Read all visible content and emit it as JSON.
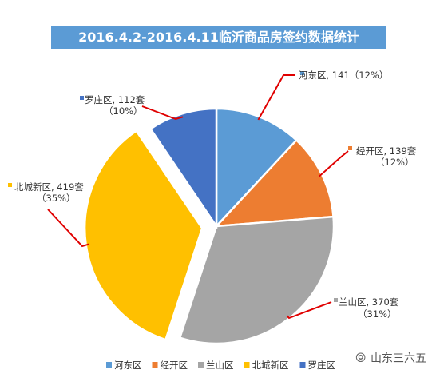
{
  "chart_data": {
    "type": "pie",
    "title": "2016.4.2-2016.4.11临沂商品房签约数据统计",
    "unit": "套",
    "slices": [
      {
        "name": "河东区",
        "value": 141,
        "percent": "12%",
        "label": "河东区, 141（12%）",
        "color": "#5b9bd5"
      },
      {
        "name": "经开区",
        "value": 139,
        "percent": "12%",
        "label_line1": "经开区, 139套",
        "label_line2": "（12%）",
        "color": "#ed7d31"
      },
      {
        "name": "兰山区",
        "value": 370,
        "percent": "31%",
        "label_line1": "兰山区, 370套",
        "label_line2": "（31%）",
        "color": "#a5a5a5"
      },
      {
        "name": "北城新区",
        "value": 419,
        "percent": "35%",
        "label_line1": "北城新区, 419套",
        "label_line2": "（35%）",
        "color": "#ffc000",
        "exploded": true
      },
      {
        "name": "罗庄区",
        "value": 112,
        "percent": "10%",
        "label_line1": "罗庄区, 112套",
        "label_line2": "（10%）",
        "color": "#4472c4"
      }
    ],
    "legend": {
      "placement": "bottom",
      "items": [
        "河东区",
        "经开区",
        "兰山区",
        "北城新区",
        "罗庄区"
      ]
    },
    "leader_line_color": "#e00000"
  },
  "watermark": {
    "icon": "wechat-icon",
    "text": "山东三六五"
  }
}
